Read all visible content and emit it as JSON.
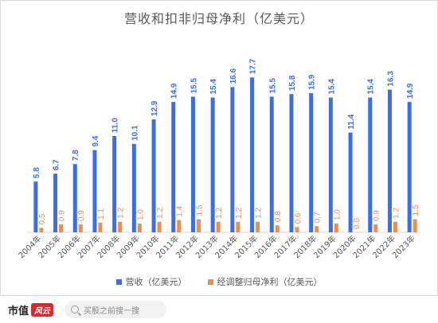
{
  "chart_data": {
    "type": "bar",
    "title": "营收和扣非归母净利（亿美元）",
    "categories": [
      "2004年",
      "2005年",
      "2006年",
      "2007年",
      "2008年",
      "2009年",
      "2010年",
      "2011年",
      "2012年",
      "2013年",
      "2014年",
      "2015年",
      "2016年",
      "2017年",
      "2018年",
      "2019年",
      "2020年",
      "2021年",
      "2022年",
      "2023年"
    ],
    "series": [
      {
        "name": "营收（亿美元）",
        "color": "#3a6ee8",
        "values": [
          5.8,
          6.7,
          7.8,
          9.4,
          11.0,
          10.1,
          12.9,
          14.9,
          15.5,
          15.4,
          16.6,
          17.7,
          15.5,
          15.8,
          15.9,
          15.4,
          11.4,
          15.4,
          16.3,
          14.9
        ],
        "labels": [
          "5.8",
          "6.7",
          "7.8",
          "9.4",
          "11.0",
          "10.1",
          "12.9",
          "14.9",
          "15.5",
          "15.4",
          "16.6",
          "17.7",
          "15.5",
          "15.8",
          "15.9",
          "15.4",
          "11.4",
          "15.4",
          "16.3",
          "14.9"
        ]
      },
      {
        "name": "经调整归母净利（亿美元）",
        "color": "#ed8d4f",
        "values": [
          0.5,
          0.9,
          0.9,
          1.1,
          1.2,
          1.0,
          1.2,
          1.4,
          1.5,
          1.2,
          1.2,
          1.2,
          0.8,
          0.6,
          0.7,
          1.0,
          0.0,
          0.9,
          1.2,
          1.5
        ],
        "labels": [
          "0.5",
          "0.9",
          "0.9",
          "1.1",
          "1.2",
          "1.0",
          "1.2",
          "1.4",
          "1.5",
          "1.2",
          "1.2",
          "1.2",
          "0.8",
          "0.6",
          "0.7",
          "1.0",
          "0.0",
          "0.9",
          "1.2",
          "1.5"
        ]
      }
    ],
    "ylim": [
      0,
      20
    ],
    "grid": false,
    "legend": "bottom"
  },
  "footer": {
    "brand": "市值",
    "brand_mark": "风云",
    "search_placeholder": "买股之前搜一搜"
  }
}
